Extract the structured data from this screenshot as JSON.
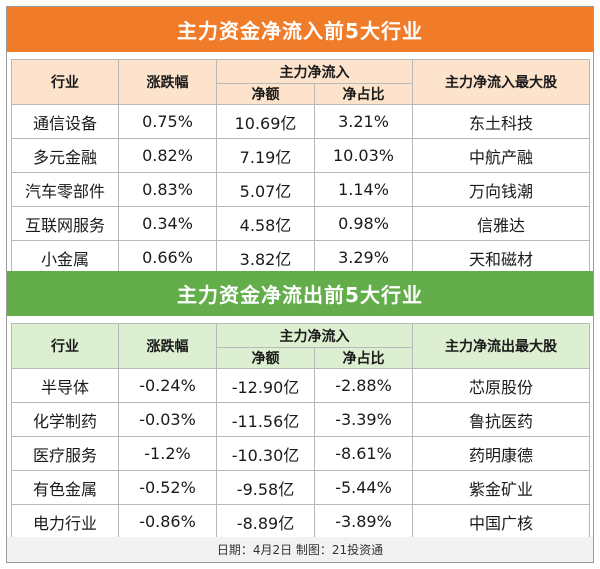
{
  "inflow": {
    "title": "主力资金净流入前5大行业",
    "headers": {
      "industry": "行业",
      "change": "涨跌幅",
      "main_group": "主力净流入",
      "net": "净额",
      "ratio": "净占比",
      "top_stock": "主力净流入最大股"
    },
    "rows": [
      {
        "industry": "通信设备",
        "change": "0.75%",
        "net": "10.69亿",
        "ratio": "3.21%",
        "stock": "东土科技"
      },
      {
        "industry": "多元金融",
        "change": "0.82%",
        "net": "7.19亿",
        "ratio": "10.03%",
        "stock": "中航产融"
      },
      {
        "industry": "汽车零部件",
        "change": "0.83%",
        "net": "5.07亿",
        "ratio": "1.14%",
        "stock": "万向钱潮"
      },
      {
        "industry": "互联网服务",
        "change": "0.34%",
        "net": "4.58亿",
        "ratio": "0.98%",
        "stock": "信雅达"
      },
      {
        "industry": "小金属",
        "change": "0.66%",
        "net": "3.82亿",
        "ratio": "3.29%",
        "stock": "天和磁材"
      }
    ]
  },
  "outflow": {
    "title": "主力资金净流出前5大行业",
    "headers": {
      "industry": "行业",
      "change": "涨跌幅",
      "main_group": "主力净流入",
      "net": "净额",
      "ratio": "净占比",
      "top_stock": "主力净流出最大股"
    },
    "rows": [
      {
        "industry": "半导体",
        "change": "-0.24%",
        "net": "-12.90亿",
        "ratio": "-2.88%",
        "stock": "芯原股份"
      },
      {
        "industry": "化学制药",
        "change": "-0.03%",
        "net": "-11.56亿",
        "ratio": "-3.39%",
        "stock": "鲁抗医药"
      },
      {
        "industry": "医疗服务",
        "change": "-1.2%",
        "net": "-10.30亿",
        "ratio": "-8.61%",
        "stock": "药明康德"
      },
      {
        "industry": "有色金属",
        "change": "-0.52%",
        "net": "-9.58亿",
        "ratio": "-5.44%",
        "stock": "紫金矿业"
      },
      {
        "industry": "电力行业",
        "change": "-0.86%",
        "net": "-8.89亿",
        "ratio": "-3.89%",
        "stock": "中国广核"
      }
    ]
  },
  "footer": "日期：4月2日 制图：21投资通",
  "colors": {
    "inflow_banner": "#f07c2a",
    "inflow_header": "#fde3cc",
    "outflow_banner": "#63ad4a",
    "outflow_header": "#dcefd1"
  }
}
